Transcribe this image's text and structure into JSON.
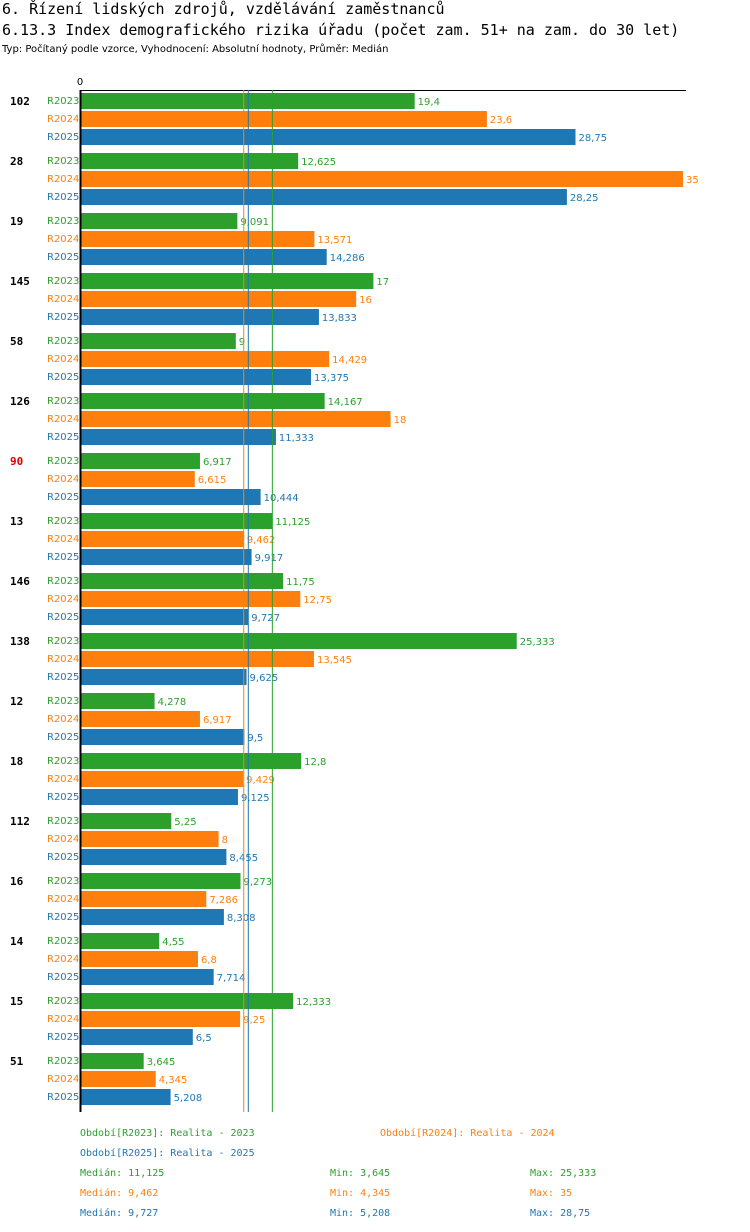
{
  "header": {
    "title": "6. Řízení lidských zdrojů, vzdělávání zaměstnanců",
    "subtitle": "6.13.3 Index demografického rizika úřadu (počet zam. 51+ na zam. do 30 let)",
    "meta": "Typ: Počítaný podle vzorce, Vyhodnocení: Absolutní hodnoty, Průměr: Medián"
  },
  "colors": {
    "R2023": "#2ca02c",
    "R2024": "#ff7f0e",
    "R2025": "#1f77b4",
    "highlight": "#dd0000"
  },
  "chart_data": {
    "type": "bar",
    "orientation": "horizontal",
    "xlim": [
      0,
      35
    ],
    "axis_zero_label": "0",
    "series_names": [
      "R2023",
      "R2024",
      "R2025"
    ],
    "categories": [
      {
        "label": "102",
        "highlight": false,
        "values": [
          19.4,
          23.6,
          28.75
        ],
        "labels": [
          "19,4",
          "23,6",
          "28,75"
        ]
      },
      {
        "label": "28",
        "highlight": false,
        "values": [
          12.625,
          35,
          28.25
        ],
        "labels": [
          "12,625",
          "35",
          "28,25"
        ]
      },
      {
        "label": "19",
        "highlight": false,
        "values": [
          9.091,
          13.571,
          14.286
        ],
        "labels": [
          "9,091",
          "13,571",
          "14,286"
        ]
      },
      {
        "label": "145",
        "highlight": false,
        "values": [
          17,
          16,
          13.833
        ],
        "labels": [
          "17",
          "16",
          "13,833"
        ]
      },
      {
        "label": "58",
        "highlight": false,
        "values": [
          9,
          14.429,
          13.375
        ],
        "labels": [
          "9",
          "14,429",
          "13,375"
        ]
      },
      {
        "label": "126",
        "highlight": false,
        "values": [
          14.167,
          18,
          11.333
        ],
        "labels": [
          "14,167",
          "18",
          "11,333"
        ]
      },
      {
        "label": "90",
        "highlight": true,
        "values": [
          6.917,
          6.615,
          10.444
        ],
        "labels": [
          "6,917",
          "6,615",
          "10,444"
        ]
      },
      {
        "label": "13",
        "highlight": false,
        "values": [
          11.125,
          9.462,
          9.917
        ],
        "labels": [
          "11,125",
          "9,462",
          "9,917"
        ]
      },
      {
        "label": "146",
        "highlight": false,
        "values": [
          11.75,
          12.75,
          9.727
        ],
        "labels": [
          "11,75",
          "12,75",
          "9,727"
        ]
      },
      {
        "label": "138",
        "highlight": false,
        "values": [
          25.333,
          13.545,
          9.625
        ],
        "labels": [
          "25,333",
          "13,545",
          "9,625"
        ]
      },
      {
        "label": "12",
        "highlight": false,
        "values": [
          4.278,
          6.917,
          9.5
        ],
        "labels": [
          "4,278",
          "6,917",
          "9,5"
        ]
      },
      {
        "label": "18",
        "highlight": false,
        "values": [
          12.8,
          9.429,
          9.125
        ],
        "labels": [
          "12,8",
          "9,429",
          "9,125"
        ]
      },
      {
        "label": "112",
        "highlight": false,
        "values": [
          5.25,
          8,
          8.455
        ],
        "labels": [
          "5,25",
          "8",
          "8,455"
        ]
      },
      {
        "label": "16",
        "highlight": false,
        "values": [
          9.273,
          7.286,
          8.308
        ],
        "labels": [
          "9,273",
          "7,286",
          "8,308"
        ]
      },
      {
        "label": "14",
        "highlight": false,
        "values": [
          4.55,
          6.8,
          7.714
        ],
        "labels": [
          "4,55",
          "6,8",
          "7,714"
        ]
      },
      {
        "label": "15",
        "highlight": false,
        "values": [
          12.333,
          9.25,
          6.5
        ],
        "labels": [
          "12,333",
          "9,25",
          "6,5"
        ]
      },
      {
        "label": "51",
        "highlight": false,
        "values": [
          3.645,
          4.345,
          5.208
        ],
        "labels": [
          "3,645",
          "4,345",
          "5,208"
        ]
      }
    ],
    "medians": [
      11.125,
      9.462,
      9.727
    ]
  },
  "legend": {
    "r2023": "Období[R2023]: Realita - 2023",
    "r2024": "Období[R2024]: Realita - 2024",
    "r2025": "Období[R2025]: Realita - 2025"
  },
  "stats": [
    {
      "median": "Medián: 11,125",
      "min": "Min: 3,645",
      "max": "Max: 25,333"
    },
    {
      "median": "Medián: 9,462",
      "min": "Min: 4,345",
      "max": "Max: 35"
    },
    {
      "median": "Medián: 9,727",
      "min": "Min: 5,208",
      "max": "Max: 28,75"
    }
  ]
}
